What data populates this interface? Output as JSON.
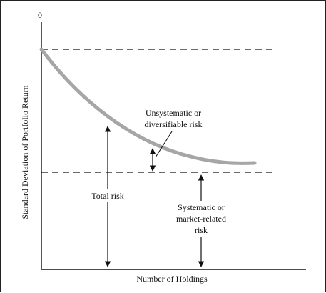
{
  "figure": {
    "origin_label": "0",
    "x_axis_label": "Number of Holdings",
    "y_axis_label": "Standard Deviation of Portfolio Return",
    "annotations": {
      "unsystematic_line1": "Unsystematic or",
      "unsystematic_line2": "diversifiable risk",
      "total_risk": "Total risk",
      "systematic_line1": "Systematic or",
      "systematic_line2": "market-related",
      "systematic_line3": "risk"
    },
    "colors": {
      "curve": "#a6a6a6",
      "lines": "#111111"
    }
  }
}
